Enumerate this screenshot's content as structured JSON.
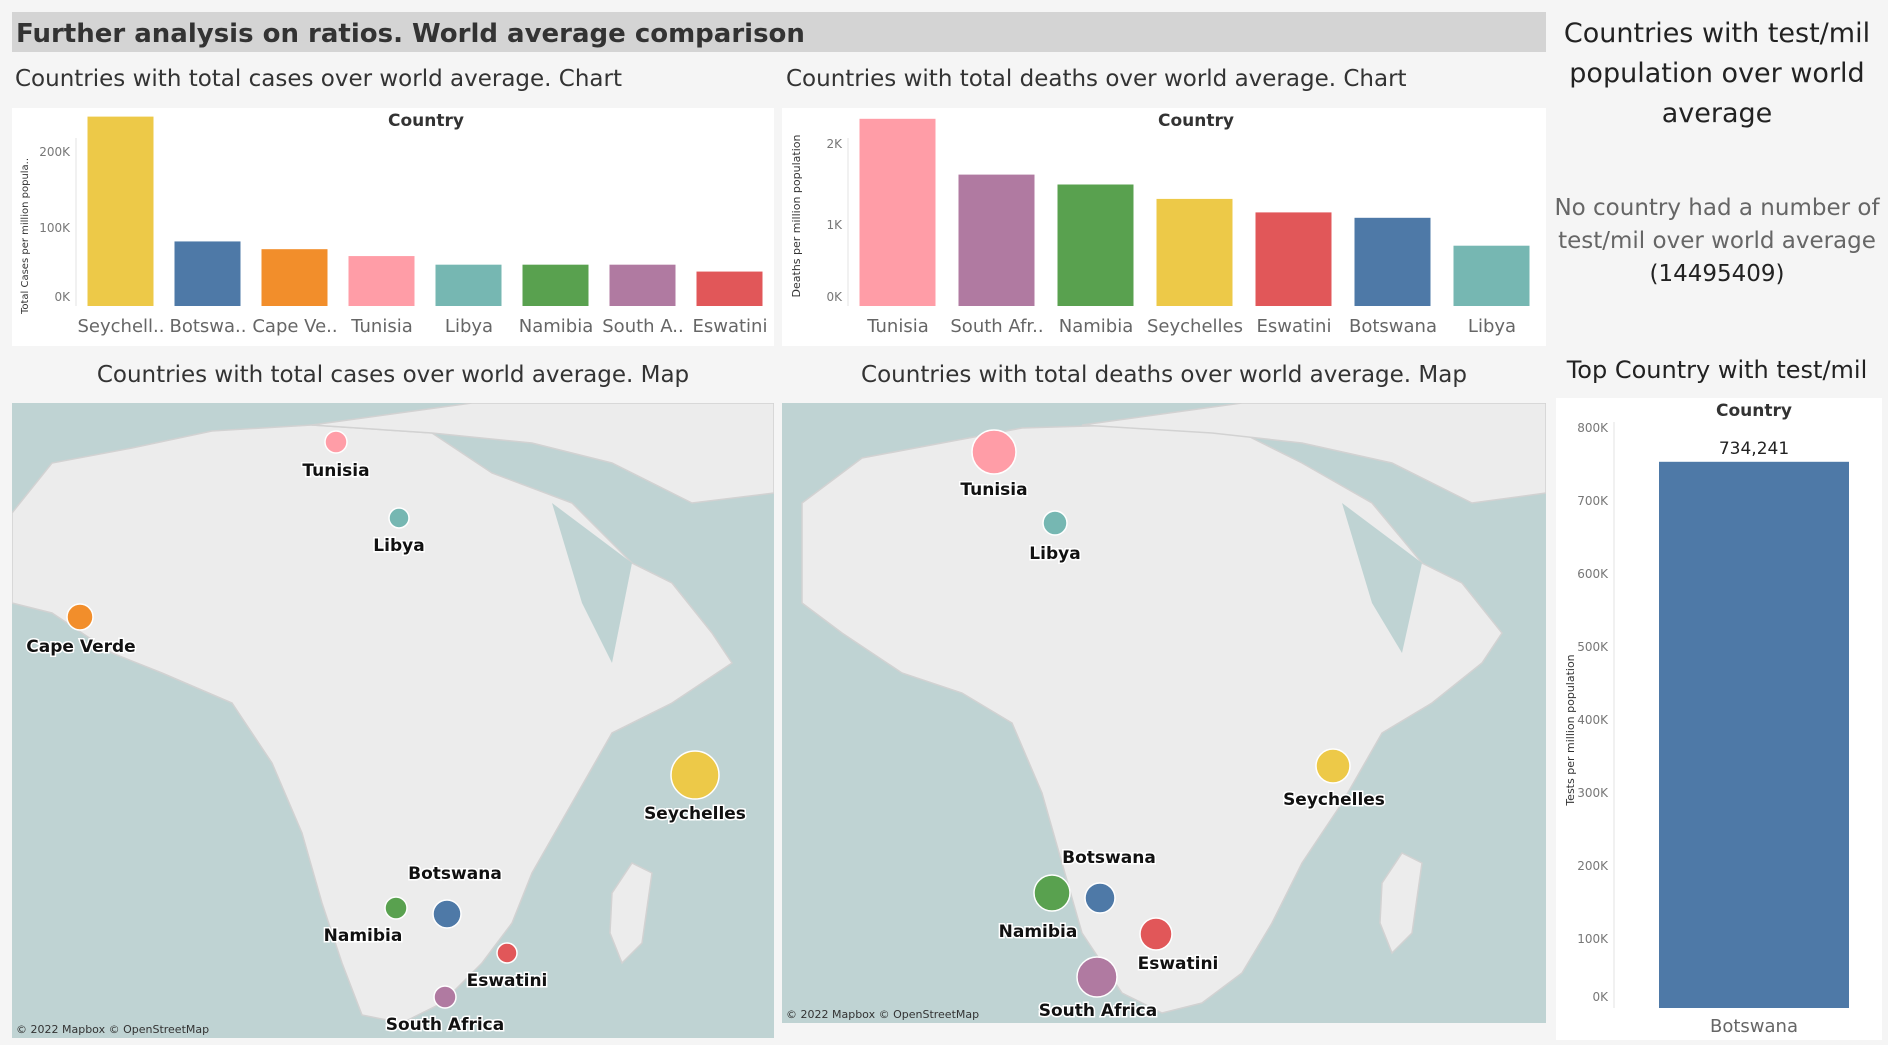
{
  "title": "Further analysis on ratios. World average comparison",
  "colors": {
    "yellow": "#edc948",
    "blue": "#4e79a7",
    "orange": "#f28e2b",
    "pink": "#ff9da7",
    "teal": "#76b7b2",
    "green": "#59a14f",
    "purple": "#b07aa1",
    "red": "#e15759"
  },
  "cases_chart": {
    "section_title": "Countries with total cases over world average. Chart",
    "chart_title": "Country",
    "ylabel": "Total Cases per million popula..",
    "yticks": [
      "200K",
      "100K",
      "0K"
    ],
    "categories": [
      "Seychell..",
      "Botswa..",
      "Cape Ve..",
      "Tunisia",
      "Libya",
      "Namibia",
      "South A..",
      "Eswatini"
    ]
  },
  "deaths_chart": {
    "section_title": "Countries with total deaths over world average. Chart",
    "chart_title": "Country",
    "ylabel": "Deaths per million population",
    "yticks": [
      "2K",
      "1K",
      "0K"
    ],
    "categories": [
      "Tunisia",
      "South Afr..",
      "Namibia",
      "Seychelles",
      "Eswatini",
      "Botswana",
      "Libya"
    ]
  },
  "cases_map": {
    "section_title": "Countries with total cases over world average. Map",
    "credit": "© 2022 Mapbox © OpenStreetMap",
    "labels": [
      "Tunisia",
      "Libya",
      "Cape Verde",
      "Seychelles",
      "Botswana",
      "Namibia",
      "Eswatini",
      "South Africa"
    ]
  },
  "deaths_map": {
    "section_title": "Countries with total deaths over world average. Map",
    "credit": "© 2022 Mapbox © OpenStreetMap",
    "labels": [
      "Tunisia",
      "Libya",
      "Seychelles",
      "Botswana",
      "Namibia",
      "Eswatini",
      "South Africa"
    ]
  },
  "tests_note": {
    "title": "Countries with test/mil population over world average",
    "text": "No country had a number of test/mil  over world average",
    "value": "(14495409)"
  },
  "top_tests": {
    "section_title": "Top Country with test/mil",
    "chart_title": "Country",
    "ylabel": "Tests per million population",
    "yticks": [
      "800K",
      "700K",
      "600K",
      "500K",
      "400K",
      "300K",
      "200K",
      "100K",
      "0K"
    ],
    "category": "Botswana",
    "value_label": "734,241"
  },
  "chart_data": [
    {
      "type": "bar",
      "title": "Countries with total cases over world average. Chart",
      "xlabel": "Country",
      "ylabel": "Total Cases per million popula..",
      "categories": [
        "Seychelles",
        "Botswana",
        "Cape Verde",
        "Tunisia",
        "Libya",
        "Namibia",
        "South Africa",
        "Eswatini"
      ],
      "values": [
        220000,
        75000,
        66000,
        58000,
        48000,
        48000,
        48000,
        40000
      ],
      "ylim": [
        0,
        230000
      ],
      "colors": [
        "#edc948",
        "#4e79a7",
        "#f28e2b",
        "#ff9da7",
        "#76b7b2",
        "#59a14f",
        "#b07aa1",
        "#e15759"
      ]
    },
    {
      "type": "bar",
      "title": "Countries with total deaths over world average. Chart",
      "xlabel": "Country",
      "ylabel": "Deaths per million population",
      "categories": [
        "Tunisia",
        "South Africa",
        "Namibia",
        "Seychelles",
        "Eswatini",
        "Botswana",
        "Libya"
      ],
      "values": [
        2080,
        1460,
        1350,
        1190,
        1040,
        980,
        670
      ],
      "ylim": [
        0,
        2200
      ],
      "colors": [
        "#ff9da7",
        "#b07aa1",
        "#59a14f",
        "#edc948",
        "#e15759",
        "#4e79a7",
        "#76b7b2"
      ]
    },
    {
      "type": "bar",
      "title": "Top Country with test/mil",
      "xlabel": "Country",
      "ylabel": "Tests per million population",
      "categories": [
        "Botswana"
      ],
      "values": [
        734241
      ],
      "ylim": [
        0,
        820000
      ],
      "colors": [
        "#4e79a7"
      ]
    }
  ]
}
